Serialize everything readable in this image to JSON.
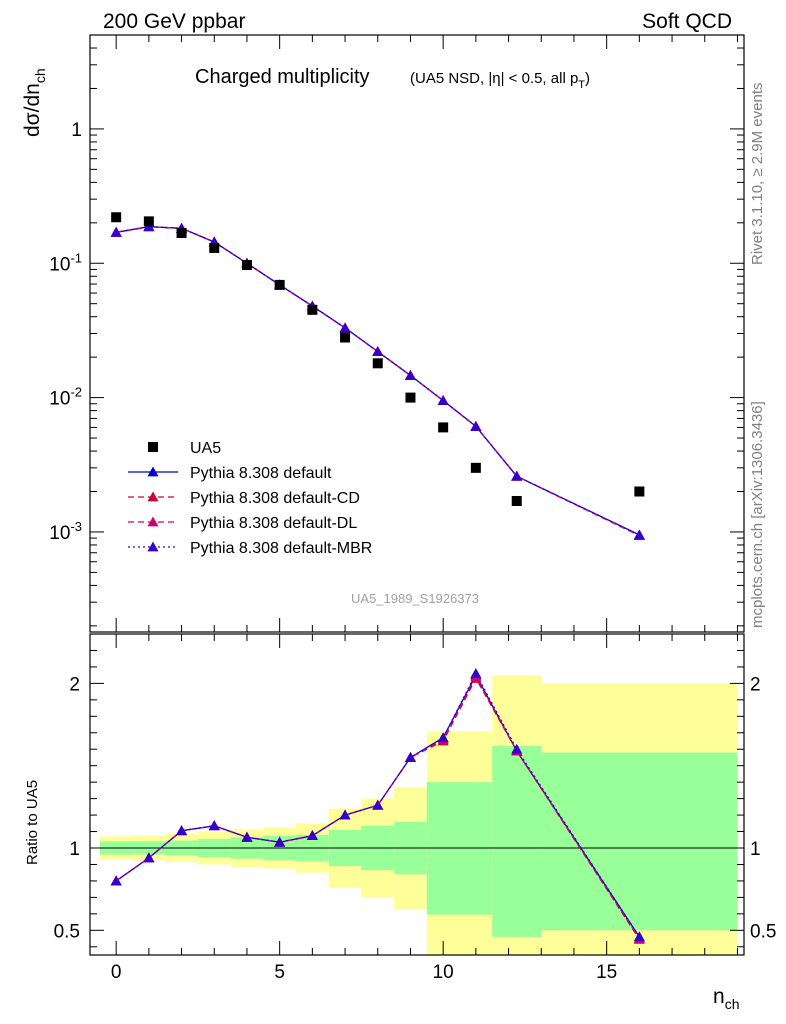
{
  "header": {
    "left": "200 GeV ppbar",
    "right": "Soft QCD"
  },
  "side": {
    "rivet": "Rivet 3.1.10, ≥ 2.9M events",
    "mcplots": "mcplots.cern.ch [arXiv:1306.3436]"
  },
  "chart_data": [
    {
      "type": "scatter",
      "title": "Charged multiplicity",
      "subtitle": "(UA5 NSD, |η| < 0.5, all p_T)",
      "ylabel": "dσ/dn_ch",
      "analysis_label": "UA5_1989_S1926373",
      "yscale": "log",
      "ylim": [
        0.00018,
        5
      ],
      "xlim": [
        -0.8,
        19.2
      ],
      "yticks": [
        0.001,
        0.01,
        0.1,
        1
      ],
      "ytick_labels": [
        "10^-3",
        "10^-2",
        "10^-1",
        "1"
      ],
      "legend_position": "lower-left",
      "data": {
        "name": "UA5",
        "color": "#000000",
        "x": [
          0,
          1,
          2,
          3,
          4,
          5,
          6,
          7,
          8,
          9,
          10,
          11,
          12.25,
          16
        ],
        "y": [
          0.22,
          0.205,
          0.168,
          0.13,
          0.097,
          0.069,
          0.045,
          0.028,
          0.018,
          0.01,
          0.006,
          0.003,
          0.0017,
          0.002
        ]
      },
      "series": [
        {
          "name": "Pythia 8.308 default",
          "color": "#0000cc",
          "dash": "solid",
          "x": [
            0,
            1,
            2,
            3,
            4,
            5,
            6,
            7,
            8,
            9,
            10,
            11,
            12.25,
            16
          ],
          "y": [
            0.17,
            0.187,
            0.182,
            0.144,
            0.1,
            0.069,
            0.048,
            0.033,
            0.022,
            0.0146,
            0.0095,
            0.0061,
            0.0026,
            0.00095
          ]
        },
        {
          "name": "Pythia 8.308 default-CD",
          "color": "#cc0033",
          "dash": "dashed",
          "x": [
            0,
            1,
            2,
            3,
            4,
            5,
            6,
            7,
            8,
            9,
            10,
            11,
            12.25,
            16
          ],
          "y": [
            0.17,
            0.187,
            0.182,
            0.144,
            0.1,
            0.069,
            0.048,
            0.033,
            0.022,
            0.0146,
            0.0095,
            0.0061,
            0.0026,
            0.00094
          ]
        },
        {
          "name": "Pythia 8.308 default-DL",
          "color": "#cc0077",
          "dash": "dashed",
          "x": [
            0,
            1,
            2,
            3,
            4,
            5,
            6,
            7,
            8,
            9,
            10,
            11,
            12.25,
            16
          ],
          "y": [
            0.17,
            0.187,
            0.182,
            0.144,
            0.1,
            0.069,
            0.048,
            0.033,
            0.022,
            0.0146,
            0.0095,
            0.0061,
            0.0026,
            0.00094
          ]
        },
        {
          "name": "Pythia 8.308 default-MBR",
          "color": "#3300cc",
          "dash": "dotted",
          "x": [
            0,
            1,
            2,
            3,
            4,
            5,
            6,
            7,
            8,
            9,
            10,
            11,
            12.25,
            16
          ],
          "y": [
            0.17,
            0.187,
            0.182,
            0.144,
            0.1,
            0.069,
            0.048,
            0.033,
            0.022,
            0.0146,
            0.0095,
            0.0061,
            0.0026,
            0.00095
          ]
        }
      ]
    },
    {
      "type": "line",
      "ylabel": "Ratio to UA5",
      "xlabel": "n_ch",
      "ylim": [
        0.35,
        2.3
      ],
      "xlim": [
        -0.8,
        19.2
      ],
      "xticks": [
        0,
        5,
        10,
        15
      ],
      "yticks": [
        0.5,
        1,
        2
      ],
      "ytick_labels": [
        "0.5",
        "1",
        "2"
      ],
      "reference_line": 1,
      "band_bins": [
        -0.5,
        0.5,
        1.5,
        2.5,
        3.5,
        4.5,
        5.5,
        6.5,
        7.5,
        8.5,
        9.5,
        11.5,
        13,
        19
      ],
      "band_inner": {
        "color": "#99ff99",
        "lo": [
          0.96,
          0.96,
          0.955,
          0.945,
          0.935,
          0.925,
          0.92,
          0.89,
          0.865,
          0.84,
          0.595,
          0.46,
          0.5
        ],
        "hi": [
          1.04,
          1.04,
          1.045,
          1.055,
          1.065,
          1.075,
          1.08,
          1.11,
          1.135,
          1.16,
          1.4,
          1.62,
          1.58
        ]
      },
      "band_outer": {
        "color": "#ffff99",
        "lo": [
          0.93,
          0.925,
          0.915,
          0.9,
          0.885,
          0.875,
          0.85,
          0.76,
          0.7,
          0.63,
          0.3,
          0.3,
          0.3
        ],
        "hi": [
          1.07,
          1.075,
          1.085,
          1.1,
          1.115,
          1.125,
          1.15,
          1.24,
          1.3,
          1.37,
          1.71,
          2.05,
          2.0
        ]
      },
      "series": [
        {
          "name": "Pythia 8.308 default",
          "color": "#0000cc",
          "dash": "solid",
          "x": [
            0,
            1,
            2,
            3,
            4,
            5,
            6,
            7,
            8,
            9,
            10,
            11,
            12.25,
            16
          ],
          "y": [
            0.8,
            0.94,
            1.105,
            1.135,
            1.065,
            1.035,
            1.075,
            1.2,
            1.26,
            1.55,
            1.67,
            2.05,
            1.59,
            0.46
          ]
        },
        {
          "name": "Pythia 8.308 default-CD",
          "color": "#cc0033",
          "dash": "dashed",
          "x": [
            0,
            1,
            2,
            3,
            4,
            5,
            6,
            7,
            8,
            9,
            10,
            11,
            12.25,
            16
          ],
          "y": [
            0.8,
            0.94,
            1.105,
            1.135,
            1.065,
            1.035,
            1.075,
            1.2,
            1.26,
            1.55,
            1.65,
            2.03,
            1.59,
            0.445
          ]
        },
        {
          "name": "Pythia 8.308 default-DL",
          "color": "#cc0077",
          "dash": "dashed",
          "x": [
            0,
            1,
            2,
            3,
            4,
            5,
            6,
            7,
            8,
            9,
            10,
            11,
            12.25,
            16
          ],
          "y": [
            0.8,
            0.94,
            1.105,
            1.135,
            1.065,
            1.035,
            1.075,
            1.2,
            1.26,
            1.55,
            1.66,
            2.04,
            1.59,
            0.45
          ]
        },
        {
          "name": "Pythia 8.308 default-MBR",
          "color": "#3300cc",
          "dash": "dotted",
          "x": [
            0,
            1,
            2,
            3,
            4,
            5,
            6,
            7,
            8,
            9,
            10,
            11,
            12.25,
            16
          ],
          "y": [
            0.8,
            0.94,
            1.105,
            1.135,
            1.065,
            1.035,
            1.075,
            1.2,
            1.26,
            1.55,
            1.67,
            2.06,
            1.6,
            0.46
          ]
        }
      ]
    }
  ]
}
